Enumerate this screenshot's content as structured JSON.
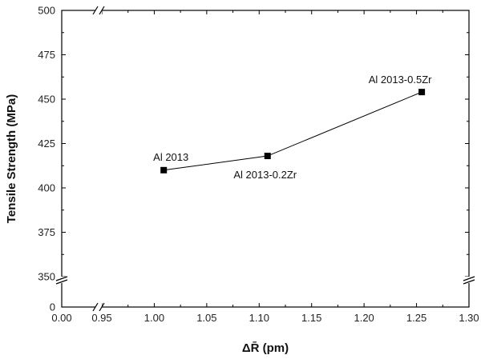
{
  "chart_data": {
    "type": "line",
    "xlabel": "ΔR̄ (pm)",
    "ylabel": "Tensile Strength (MPa)",
    "x_axis": {
      "break_between": [
        0.0,
        0.95
      ],
      "ticks": [
        "0.00",
        "0.95",
        "1.00",
        "1.05",
        "1.10",
        "1.15",
        "1.20",
        "1.25",
        "1.30"
      ],
      "range_upper": [
        0.95,
        1.3
      ]
    },
    "y_axis": {
      "break_between": [
        0,
        350
      ],
      "ticks": [
        "0",
        "350",
        "375",
        "400",
        "425",
        "450",
        "475",
        "500"
      ],
      "range_upper": [
        350,
        500
      ]
    },
    "series": [
      {
        "points": [
          {
            "x": 1.009,
            "y": 410,
            "label": "Al 2013"
          },
          {
            "x": 1.108,
            "y": 418,
            "label": "Al 2013-0.2Zr"
          },
          {
            "x": 1.255,
            "y": 454,
            "label": "Al 2013-0.5Zr"
          }
        ]
      }
    ],
    "grid": false,
    "marker": "square",
    "color": "#000000"
  }
}
